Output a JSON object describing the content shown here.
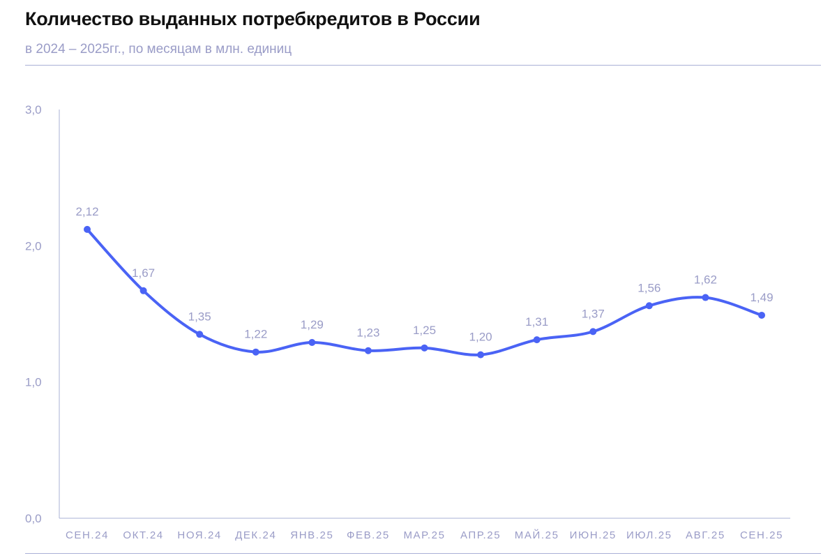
{
  "header": {
    "title": "Количество выданных потребкредитов в России",
    "subtitle": "в 2024 – 2025гг., по месяцам в млн. единиц"
  },
  "chart_data": {
    "type": "line",
    "categories": [
      "СЕН.24",
      "ОКТ.24",
      "НОЯ.24",
      "ДЕК.24",
      "ЯНВ.25",
      "ФЕВ.25",
      "МАР.25",
      "АПР.25",
      "МАЙ.25",
      "ИЮН.25",
      "ИЮЛ.25",
      "АВГ.25",
      "СЕН.25"
    ],
    "values": [
      2.12,
      1.67,
      1.35,
      1.22,
      1.29,
      1.23,
      1.25,
      1.2,
      1.31,
      1.37,
      1.56,
      1.62,
      1.49
    ],
    "value_labels": [
      "2,12",
      "1,67",
      "1,35",
      "1,22",
      "1,29",
      "1,23",
      "1,25",
      "1,20",
      "1,31",
      "1,37",
      "1,56",
      "1,62",
      "1,49"
    ],
    "y_ticks": [
      0,
      1,
      2,
      3
    ],
    "y_tick_labels": [
      "0,0",
      "1,0",
      "2,0",
      "3,0"
    ],
    "ylim": [
      0,
      3
    ],
    "grid": false,
    "line_color": "#4a63f5",
    "axis_color": "#aab0d6",
    "text_color": "#9a9cc7"
  }
}
